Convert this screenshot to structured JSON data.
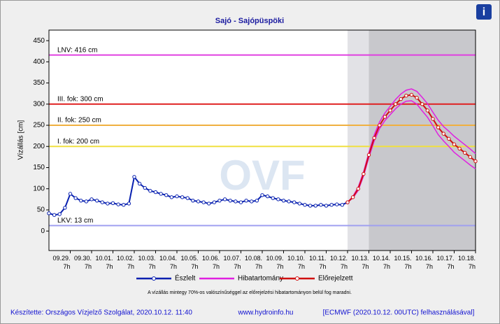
{
  "chart_data": {
    "type": "line",
    "title": "Sajó - Sajópüspöki",
    "y_label": "Vízállás [cm]",
    "watermark": "OVF",
    "info_icon": "i",
    "ylim": [
      -46,
      475
    ],
    "yticks": [
      0,
      50,
      100,
      150,
      200,
      250,
      300,
      350,
      400,
      450
    ],
    "xlim": [
      0,
      20
    ],
    "xticks": [
      {
        "value": 1,
        "label": "09.29. 7h"
      },
      {
        "value": 2,
        "label": "09.30. 7h"
      },
      {
        "value": 3,
        "label": "10.01. 7h"
      },
      {
        "value": 4,
        "label": "10.02. 7h"
      },
      {
        "value": 5,
        "label": "10.03. 7h"
      },
      {
        "value": 6,
        "label": "10.04. 7h"
      },
      {
        "value": 7,
        "label": "10.05. 7h"
      },
      {
        "value": 8,
        "label": "10.06. 7h"
      },
      {
        "value": 9,
        "label": "10.07. 7h"
      },
      {
        "value": 10,
        "label": "10.08. 7h"
      },
      {
        "value": 11,
        "label": "10.09. 7h"
      },
      {
        "value": 12,
        "label": "10.10. 7h"
      },
      {
        "value": 13,
        "label": "10.11. 7h"
      },
      {
        "value": 14,
        "label": "10.12. 7h"
      },
      {
        "value": 15,
        "label": "10.13. 7h"
      },
      {
        "value": 16,
        "label": "10.14. 7h"
      },
      {
        "value": 17,
        "label": "10.15. 7h"
      },
      {
        "value": 18,
        "label": "10.16. 7h"
      },
      {
        "value": 19,
        "label": "10.17. 7h"
      },
      {
        "value": 20,
        "label": "10.18. 7h"
      }
    ],
    "shaded_regions": [
      {
        "xlim": [
          14,
          15
        ],
        "color": "#e2e2e6"
      },
      {
        "xlim": [
          15,
          20
        ],
        "color": "#c8c8cc"
      }
    ],
    "thresholds": [
      {
        "label": "LNV: 416 cm",
        "value": 416,
        "color": "#e040e0"
      },
      {
        "label": "III. fok: 300 cm",
        "value": 300,
        "color": "#e02020"
      },
      {
        "label": "II. fok: 250 cm",
        "value": 250,
        "color": "#f0b040"
      },
      {
        "label": "I. fok: 200 cm",
        "value": 200,
        "color": "#f0e040"
      },
      {
        "label": "LKV: 13 cm",
        "value": 13,
        "color": "#a0a0f0"
      }
    ],
    "series": [
      {
        "name": "Észlelt",
        "color": "#0820b0",
        "x": [
          0,
          0.25,
          0.5,
          0.75,
          1,
          1.25,
          1.5,
          1.75,
          2,
          2.25,
          2.5,
          2.75,
          3,
          3.25,
          3.5,
          3.75,
          4,
          4.25,
          4.5,
          4.75,
          5,
          5.25,
          5.5,
          5.75,
          6,
          6.25,
          6.5,
          6.75,
          7,
          7.25,
          7.5,
          7.75,
          8,
          8.25,
          8.5,
          8.75,
          9,
          9.25,
          9.5,
          9.75,
          10,
          10.25,
          10.5,
          10.75,
          11,
          11.25,
          11.5,
          11.75,
          12,
          12.25,
          12.5,
          12.75,
          13,
          13.25,
          13.5,
          13.75,
          14
        ],
        "values": [
          42,
          38,
          40,
          55,
          88,
          78,
          72,
          70,
          75,
          72,
          68,
          65,
          66,
          63,
          62,
          65,
          128,
          112,
          102,
          95,
          92,
          88,
          85,
          80,
          82,
          80,
          78,
          72,
          70,
          68,
          65,
          68,
          72,
          75,
          72,
          70,
          68,
          72,
          70,
          72,
          85,
          82,
          78,
          75,
          72,
          70,
          68,
          65,
          62,
          60,
          60,
          62,
          60,
          62,
          63,
          62,
          68
        ]
      },
      {
        "name": "Hibatartomány",
        "color": "#e020e0",
        "x": [
          14,
          14.25,
          14.5,
          14.75,
          15,
          15.25,
          15.5,
          15.75,
          16,
          16.25,
          16.5,
          16.75,
          17,
          17.25,
          17.5,
          17.75,
          18,
          18.25,
          18.5,
          18.75,
          19,
          19.25,
          19.5,
          19.75,
          20
        ],
        "upper": [
          68,
          82,
          104,
          140,
          186,
          227,
          258,
          279,
          295,
          311,
          324,
          333,
          336,
          330,
          316,
          301,
          281,
          262,
          247,
          236,
          224,
          214,
          204,
          194,
          183
        ],
        "lower": [
          68,
          78,
          96,
          130,
          174,
          213,
          242,
          261,
          275,
          289,
          300,
          307,
          308,
          300,
          284,
          269,
          249,
          228,
          213,
          200,
          186,
          176,
          166,
          156,
          147
        ]
      },
      {
        "name": "Előrejelzett",
        "color": "#d01010",
        "x": [
          14,
          14.25,
          14.5,
          14.75,
          15,
          15.25,
          15.5,
          15.75,
          16,
          16.25,
          16.5,
          16.75,
          17,
          17.25,
          17.5,
          17.75,
          18,
          18.25,
          18.5,
          18.75,
          19,
          19.25,
          19.5,
          19.75,
          20
        ],
        "values": [
          68,
          80,
          100,
          135,
          180,
          220,
          250,
          270,
          285,
          300,
          312,
          320,
          322,
          315,
          300,
          285,
          265,
          245,
          230,
          218,
          205,
          195,
          185,
          175,
          165
        ]
      }
    ],
    "note": "A vízállás mintegy 70%-os valószínűséggel az előrejelzési hibatartományon belül fog maradni.",
    "footer": {
      "author": "Készítette: Országos Vízjelző Szolgálat, 2020.10.12. 11:40",
      "url": "www.hydroinfo.hu",
      "source": "[ECMWF (2020.10.12. 00UTC) felhasználásával]"
    }
  }
}
